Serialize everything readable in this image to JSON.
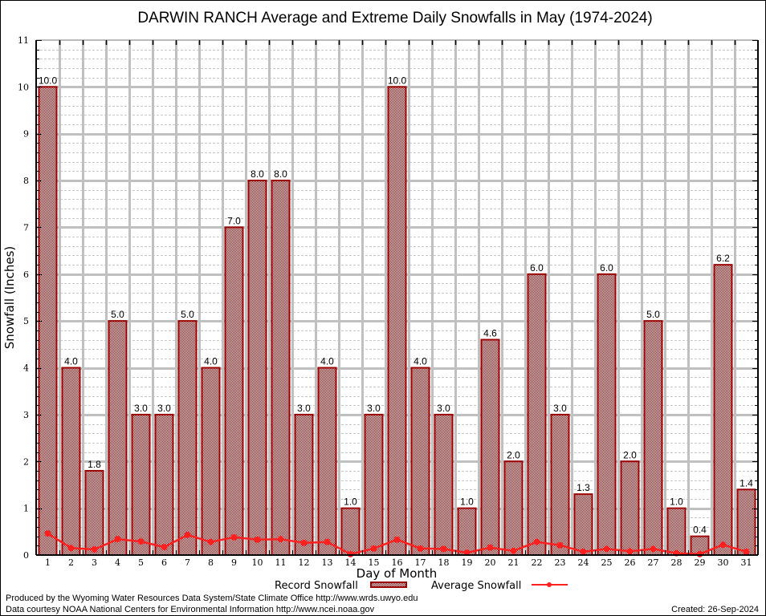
{
  "chart_data": {
    "type": "bar",
    "title": "DARWIN RANCH Average and Extreme Daily Snowfalls in May (1974-2024)",
    "xlabel": "Day of Month",
    "ylabel": "Snowfall (Inches)",
    "ylim": [
      0,
      11
    ],
    "yticks": [
      "0",
      "1",
      "2",
      "3",
      "4",
      "5",
      "6",
      "7",
      "8",
      "9",
      "10",
      "11"
    ],
    "categories": [
      "1",
      "2",
      "3",
      "4",
      "5",
      "6",
      "7",
      "8",
      "9",
      "10",
      "11",
      "12",
      "13",
      "14",
      "15",
      "16",
      "17",
      "18",
      "19",
      "20",
      "21",
      "22",
      "23",
      "24",
      "25",
      "26",
      "27",
      "28",
      "29",
      "30",
      "31"
    ],
    "grid": true,
    "series": [
      {
        "name": "Record Snowfall",
        "type": "bar",
        "color": "#9b0000",
        "values": [
          10.0,
          4.0,
          1.8,
          5.0,
          3.0,
          3.0,
          5.0,
          4.0,
          7.0,
          8.0,
          8.0,
          3.0,
          4.0,
          1.0,
          3.0,
          10.0,
          4.0,
          3.0,
          1.0,
          4.6,
          2.0,
          6.0,
          3.0,
          1.3,
          6.0,
          2.0,
          5.0,
          1.0,
          0.4,
          6.2,
          1.4
        ],
        "labels": [
          "10.0",
          "4.0",
          "1.8",
          "5.0",
          "3.0",
          "3.0",
          "5.0",
          "4.0",
          "7.0",
          "8.0",
          "8.0",
          "3.0",
          "4.0",
          "1.0",
          "3.0",
          "10.0",
          "4.0",
          "3.0",
          "1.0",
          "4.6",
          "2.0",
          "6.0",
          "3.0",
          "1.3",
          "6.0",
          "2.0",
          "5.0",
          "1.0",
          "0.4",
          "6.2",
          "1.4"
        ]
      },
      {
        "name": "Average Snowfall",
        "type": "line",
        "color": "#ff2020",
        "values": [
          0.46,
          0.15,
          0.12,
          0.34,
          0.29,
          0.17,
          0.43,
          0.28,
          0.38,
          0.33,
          0.34,
          0.26,
          0.28,
          0.02,
          0.14,
          0.33,
          0.14,
          0.13,
          0.05,
          0.16,
          0.09,
          0.28,
          0.21,
          0.07,
          0.13,
          0.08,
          0.13,
          0.04,
          0.02,
          0.22,
          0.07
        ]
      }
    ],
    "legend": {
      "position": "bottom-center",
      "entries": [
        "Record Snowfall",
        "Average Snowfall"
      ]
    }
  },
  "footer": {
    "line1": "Produced by the Wyoming Water Resources Data System/State Climate Office http://www.wrds.uwyo.edu",
    "line2": "Data courtesy NOAA National Centers for Environmental Information http://www.ncei.noaa.gov",
    "created": "Created:  26-Sep-2024"
  },
  "colors": {
    "bar_fill": "#9b0000",
    "bar_border": "#9b0000",
    "avg_line": "#ff2020",
    "grid_major": "#c0c0c0",
    "grid_minor": "#c8c8c8"
  }
}
